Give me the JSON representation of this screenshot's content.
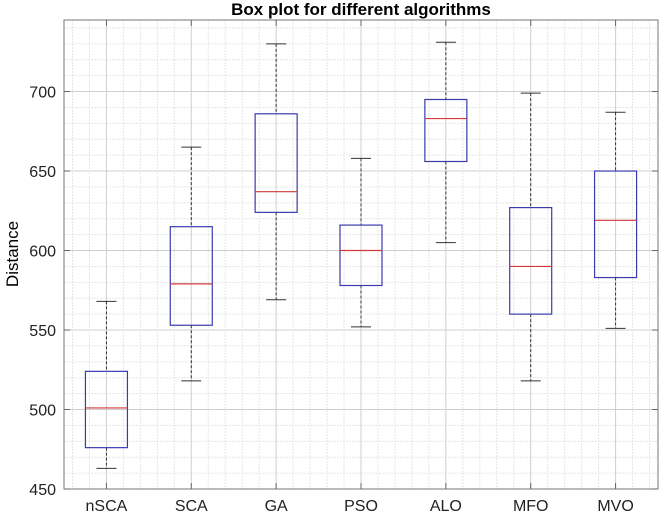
{
  "chart_data": {
    "type": "box",
    "title": "Box plot for different algorithms",
    "xlabel": "",
    "ylabel": "Distance",
    "categories": [
      "nSCA",
      "SCA",
      "GA",
      "PSO",
      "ALO",
      "MFO",
      "MVO"
    ],
    "ylim": [
      450,
      745
    ],
    "yticks": [
      450,
      500,
      550,
      600,
      650,
      700
    ],
    "grid": true,
    "minor_grid": true,
    "boxes": [
      {
        "min": 463,
        "q1": 476,
        "median": 501,
        "q3": 524,
        "max": 568
      },
      {
        "min": 518,
        "q1": 553,
        "median": 579,
        "q3": 615,
        "max": 665
      },
      {
        "min": 569,
        "q1": 624,
        "median": 637,
        "q3": 686,
        "max": 730
      },
      {
        "min": 552,
        "q1": 578,
        "median": 600,
        "q3": 616,
        "max": 658
      },
      {
        "min": 605,
        "q1": 656,
        "median": 683,
        "q3": 695,
        "max": 731
      },
      {
        "min": 518,
        "q1": 560,
        "median": 590,
        "q3": 627,
        "max": 699
      },
      {
        "min": 551,
        "q1": 583,
        "median": 619,
        "q3": 650,
        "max": 687
      }
    ],
    "colors": {
      "box": "#3b3bb0",
      "median": "#d23a3a",
      "whisker": "#333333",
      "grid": "#d9d9d9"
    }
  }
}
